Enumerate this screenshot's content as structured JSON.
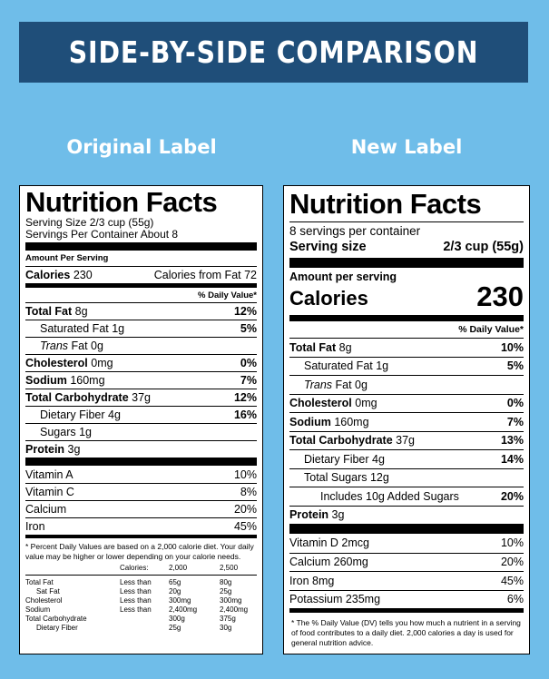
{
  "banner": "SIDE-BY-SIDE COMPARISON",
  "titles": {
    "original": "Original Label",
    "new": "New Label"
  },
  "orig": {
    "title": "Nutrition Facts",
    "serving_size": "Serving Size 2/3 cup (55g)",
    "servings_per": "Servings Per Container About 8",
    "amount_per": "Amount Per Serving",
    "calories_label": "Calories",
    "calories_value": "230",
    "cal_from_fat": "Calories from Fat 72",
    "dv_header": "% Daily Value*",
    "rows": [
      {
        "label": "Total Fat",
        "amount": "8g",
        "dv": "12%"
      },
      {
        "label": "Saturated Fat",
        "amount": "1g",
        "dv": "5%"
      },
      {
        "label": "Trans",
        "amount": "Fat 0g",
        "dv": ""
      },
      {
        "label": "Cholesterol",
        "amount": "0mg",
        "dv": "0%"
      },
      {
        "label": "Sodium",
        "amount": "160mg",
        "dv": "7%"
      },
      {
        "label": "Total Carbohydrate",
        "amount": "37g",
        "dv": "12%"
      },
      {
        "label": "Dietary Fiber",
        "amount": "4g",
        "dv": "16%"
      },
      {
        "label": "Sugars",
        "amount": "1g",
        "dv": ""
      },
      {
        "label": "Protein",
        "amount": "3g",
        "dv": ""
      }
    ],
    "vitamins": [
      {
        "label": "Vitamin A",
        "dv": "10%"
      },
      {
        "label": "Vitamin C",
        "dv": "8%"
      },
      {
        "label": "Calcium",
        "dv": "20%"
      },
      {
        "label": "Iron",
        "dv": "45%"
      }
    ],
    "footnote": "* Percent Daily Values are based on a 2,000 calorie diet. Your daily value may be higher or lower depending on your calorie needs.",
    "table_header": [
      "",
      "Calories:",
      "2,000",
      "2,500"
    ],
    "table": [
      [
        "Total Fat",
        "Less than",
        "65g",
        "80g"
      ],
      [
        "Sat Fat",
        "Less than",
        "20g",
        "25g"
      ],
      [
        "Cholesterol",
        "Less than",
        "300mg",
        "300mg"
      ],
      [
        "Sodium",
        "Less than",
        "2,400mg",
        "2,400mg"
      ],
      [
        "Total Carbohydrate",
        "",
        "300g",
        "375g"
      ],
      [
        "Dietary Fiber",
        "",
        "25g",
        "30g"
      ]
    ]
  },
  "new": {
    "title": "Nutrition Facts",
    "servings": "8 servings per container",
    "serving_size_label": "Serving size",
    "serving_size_value": "2/3 cup (55g)",
    "amount_per": "Amount per serving",
    "calories_label": "Calories",
    "calories_value": "230",
    "dv_header": "% Daily Value*",
    "rows": [
      {
        "label": "Total Fat",
        "amount": "8g",
        "dv": "10%"
      },
      {
        "label": "Saturated Fat",
        "amount": "1g",
        "dv": "5%"
      },
      {
        "label": "Trans",
        "amount": "Fat 0g",
        "dv": ""
      },
      {
        "label": "Cholesterol",
        "amount": "0mg",
        "dv": "0%"
      },
      {
        "label": "Sodium",
        "amount": "160mg",
        "dv": "7%"
      },
      {
        "label": "Total Carbohydrate",
        "amount": "37g",
        "dv": "13%"
      },
      {
        "label": "Dietary Fiber",
        "amount": "4g",
        "dv": "14%"
      },
      {
        "label": "Total Sugars",
        "amount": "12g",
        "dv": ""
      },
      {
        "label": "Includes 10g Added Sugars",
        "amount": "",
        "dv": "20%"
      },
      {
        "label": "Protein",
        "amount": "3g",
        "dv": ""
      }
    ],
    "vitamins": [
      {
        "label": "Vitamin D 2mcg",
        "dv": "10%"
      },
      {
        "label": "Calcium 260mg",
        "dv": "20%"
      },
      {
        "label": "Iron 8mg",
        "dv": "45%"
      },
      {
        "label": "Potassium 235mg",
        "dv": "6%"
      }
    ],
    "footnote": "* The % Daily Value (DV) tells you how much a nutrient in a serving of food contributes to a daily diet. 2,000 calories a day is used for general nutrition advice."
  },
  "colors": {
    "background": "#6fbde9",
    "banner": "#1f4e79",
    "label_bg": "#ffffff",
    "ink": "#000000"
  }
}
